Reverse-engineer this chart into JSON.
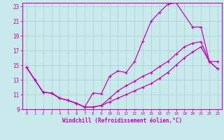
{
  "xlabel": "Windchill (Refroidissement éolien,°C)",
  "xlim": [
    -0.5,
    23.5
  ],
  "ylim": [
    9,
    23.5
  ],
  "xticks": [
    0,
    1,
    2,
    3,
    4,
    5,
    6,
    7,
    8,
    9,
    10,
    11,
    12,
    13,
    14,
    15,
    16,
    17,
    18,
    19,
    20,
    21,
    22,
    23
  ],
  "yticks": [
    9,
    11,
    13,
    15,
    17,
    19,
    21,
    23
  ],
  "bg_color": "#c8eaea",
  "grid_color": "#aacfcf",
  "line_color": "#cc00cc",
  "line1_x": [
    0,
    1,
    2,
    3,
    4,
    5,
    6,
    7,
    8,
    9,
    10,
    11,
    12,
    13,
    14,
    15,
    16,
    17,
    18,
    20,
    21,
    22,
    23
  ],
  "line1_y": [
    14.7,
    13.0,
    11.3,
    11.2,
    10.5,
    10.2,
    9.8,
    9.3,
    11.2,
    11.1,
    13.5,
    14.2,
    14.0,
    15.5,
    18.3,
    21.0,
    22.2,
    23.3,
    23.5,
    20.2,
    20.2,
    15.5,
    15.5
  ],
  "line2_x": [
    0,
    1,
    2,
    3,
    4,
    5,
    6,
    7,
    8,
    9,
    10,
    11,
    12,
    13,
    14,
    15,
    16,
    17,
    18,
    19,
    20,
    21,
    22,
    23
  ],
  "line2_y": [
    14.7,
    13.0,
    11.3,
    11.2,
    10.5,
    10.2,
    9.8,
    9.3,
    9.3,
    9.5,
    10.5,
    11.5,
    12.2,
    12.8,
    13.5,
    14.0,
    14.8,
    15.5,
    16.5,
    17.5,
    18.0,
    18.2,
    15.5,
    14.5
  ],
  "line3_x": [
    0,
    1,
    2,
    3,
    4,
    5,
    6,
    7,
    8,
    9,
    10,
    11,
    12,
    13,
    14,
    15,
    16,
    17,
    18,
    19,
    20,
    21,
    22,
    23
  ],
  "line3_y": [
    14.7,
    13.0,
    11.3,
    11.2,
    10.5,
    10.2,
    9.8,
    9.3,
    9.3,
    9.5,
    10.0,
    10.5,
    11.0,
    11.5,
    12.0,
    12.5,
    13.2,
    14.0,
    15.0,
    16.0,
    16.8,
    17.5,
    15.5,
    14.5
  ]
}
